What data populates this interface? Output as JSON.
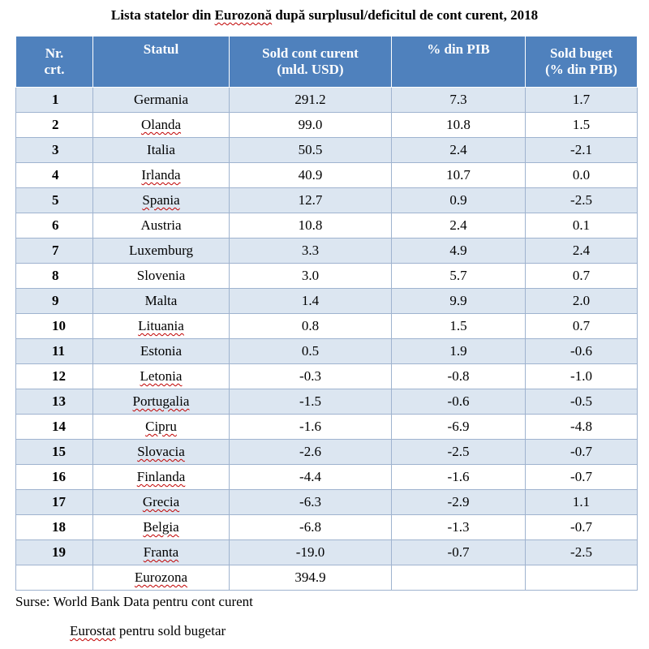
{
  "title": {
    "pre": "Lista statelor din ",
    "mark": "Eurozonă",
    "post": " după surplusul/deficitul de cont curent, 2018"
  },
  "headers": [
    [
      "Nr.",
      "crt."
    ],
    [
      "Statul"
    ],
    [
      "Sold cont curent",
      "(mld. USD)"
    ],
    [
      "% din PIB"
    ],
    [
      "Sold buget",
      "(% din PIB)"
    ]
  ],
  "rows": [
    {
      "nr": "1",
      "stat": "Germania",
      "sold": "291.2",
      "pib": "7.3",
      "buget": "1.7"
    },
    {
      "nr": "2",
      "stat": "Olanda",
      "sold": "99.0",
      "pib": "10.8",
      "buget": "1.5"
    },
    {
      "nr": "3",
      "stat": "Italia",
      "sold": "50.5",
      "pib": "2.4",
      "buget": "-2.1"
    },
    {
      "nr": "4",
      "stat": "Irlanda",
      "sold": "40.9",
      "pib": "10.7",
      "buget": "0.0"
    },
    {
      "nr": "5",
      "stat": "Spania",
      "sold": "12.7",
      "pib": "0.9",
      "buget": "-2.5"
    },
    {
      "nr": "6",
      "stat": "Austria",
      "sold": "10.8",
      "pib": "2.4",
      "buget": "0.1"
    },
    {
      "nr": "7",
      "stat": "Luxemburg",
      "sold": "3.3",
      "pib": "4.9",
      "buget": "2.4"
    },
    {
      "nr": "8",
      "stat": "Slovenia",
      "sold": "3.0",
      "pib": "5.7",
      "buget": "0.7"
    },
    {
      "nr": "9",
      "stat": "Malta",
      "sold": "1.4",
      "pib": "9.9",
      "buget": "2.0"
    },
    {
      "nr": "10",
      "stat": "Lituania",
      "sold": "0.8",
      "pib": "1.5",
      "buget": "0.7"
    },
    {
      "nr": "11",
      "stat": "Estonia",
      "sold": "0.5",
      "pib": "1.9",
      "buget": "-0.6"
    },
    {
      "nr": "12",
      "stat": "Letonia",
      "sold": "-0.3",
      "pib": "-0.8",
      "buget": "-1.0"
    },
    {
      "nr": "13",
      "stat": "Portugalia",
      "sold": "-1.5",
      "pib": "-0.6",
      "buget": "-0.5"
    },
    {
      "nr": "14",
      "stat": "Cipru",
      "sold": "-1.6",
      "pib": "-6.9",
      "buget": "-4.8"
    },
    {
      "nr": "15",
      "stat": "Slovacia",
      "sold": "-2.6",
      "pib": "-2.5",
      "buget": "-0.7"
    },
    {
      "nr": "16",
      "stat": "Finlanda",
      "sold": "-4.4",
      "pib": "-1.6",
      "buget": "-0.7"
    },
    {
      "nr": "17",
      "stat": "Grecia",
      "sold": "-6.3",
      "pib": "-2.9",
      "buget": "1.1"
    },
    {
      "nr": "18",
      "stat": "Belgia",
      "sold": "-6.8",
      "pib": "-1.3",
      "buget": "-0.7"
    },
    {
      "nr": "19",
      "stat": "Franta",
      "sold": "-19.0",
      "pib": "-0.7",
      "buget": "-2.5"
    }
  ],
  "total": {
    "nr": "",
    "stat": "Eurozona",
    "sold": "394.9",
    "pib": "",
    "buget": ""
  },
  "sources": {
    "line1": "Surse: World Bank Data pentru cont curent",
    "line2_mark": "Eurostat",
    "line2_rest": " pentru sold bugetar"
  },
  "colors": {
    "header_bg": "#4f81bd",
    "band_bg": "#dce6f1",
    "spell_underline": "#c00000"
  }
}
